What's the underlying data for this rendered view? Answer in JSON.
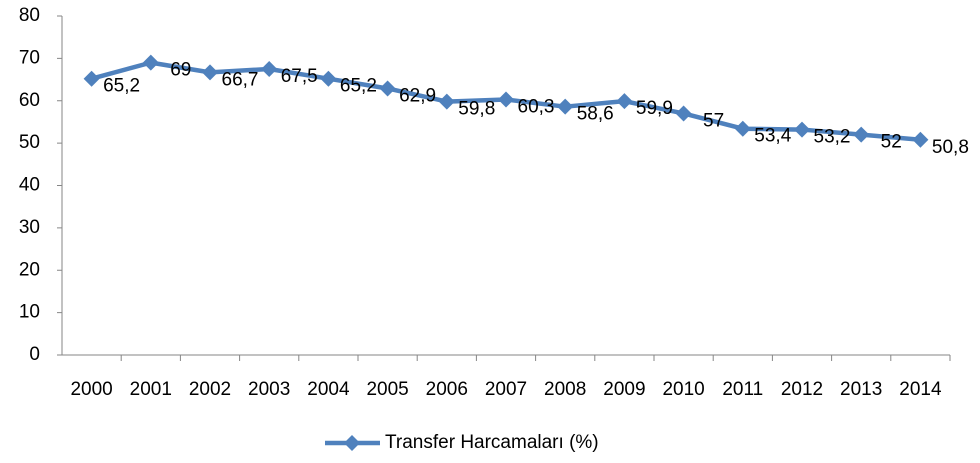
{
  "chart_data": {
    "type": "line",
    "categories": [
      "2000",
      "2001",
      "2002",
      "2003",
      "2004",
      "2005",
      "2006",
      "2007",
      "2008",
      "2009",
      "2010",
      "2011",
      "2012",
      "2013",
      "2014"
    ],
    "series": [
      {
        "name": "Transfer Harcamaları (%)",
        "color": "#4f81bd",
        "values": [
          65.2,
          69,
          66.7,
          67.5,
          65.2,
          62.9,
          59.8,
          60.3,
          58.6,
          59.9,
          57,
          53.4,
          53.2,
          52,
          50.8
        ],
        "value_labels": [
          "65,2",
          "69",
          "66,7",
          "67,5",
          "65,2",
          "62,9",
          "59,8",
          "60,3",
          "58,6",
          "59,9",
          "57",
          "53,4",
          "53,2",
          "52",
          "50,8"
        ]
      }
    ],
    "ylim": [
      0,
      80
    ],
    "yticks": [
      0,
      10,
      20,
      30,
      40,
      50,
      60,
      70,
      80
    ],
    "grid": false,
    "legend": "bottom"
  }
}
